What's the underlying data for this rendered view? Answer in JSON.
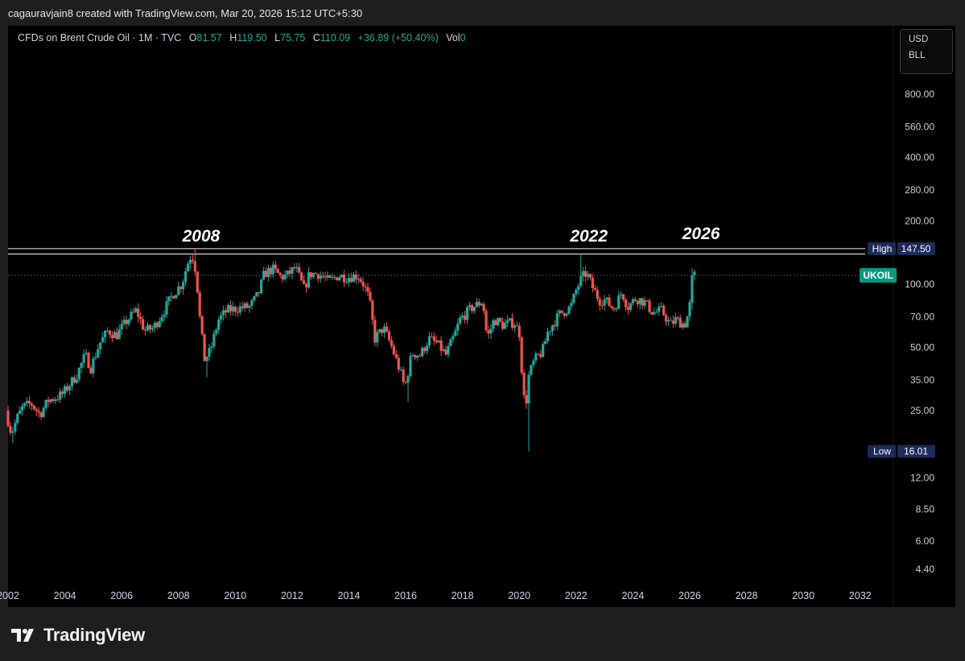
{
  "header": {
    "credit": "cagauravjain8 created with TradingView.com, Mar 20, 2026 15:12 UTC+5:30"
  },
  "legend": {
    "symbol": "CFDs on Brent Crude Oil · 1M · TVC",
    "open_label": "O",
    "open": "81.57",
    "high_label": "H",
    "high": "119.50",
    "low_label": "L",
    "low": "75.75",
    "close_label": "C",
    "close": "110.09",
    "change": "+36.89 (+50.40%)",
    "vol_label": "Vol",
    "vol": "0"
  },
  "unit_box": {
    "currency": "USD",
    "unit": "BLL"
  },
  "footer": {
    "brand": "TradingView"
  },
  "colors": {
    "up": "#26a69a",
    "down": "#ef5350",
    "background": "#000000",
    "high_marker": "#1c2b5a",
    "symbol_marker": "#089981"
  },
  "chart_data": {
    "type": "candlestick",
    "symbol": "UKOIL",
    "timeframe": "1M",
    "y_scale": "log",
    "ylim": [
      3.5,
      1100
    ],
    "xlim": [
      2002.0,
      2033.0
    ],
    "y_ticks": [
      "800.00",
      "560.00",
      "400.00",
      "280.00",
      "200.00",
      "100.00",
      "70.00",
      "50.00",
      "35.00",
      "25.00",
      "12.00",
      "8.50",
      "6.00",
      "4.40"
    ],
    "x_ticks": [
      "2002",
      "2004",
      "2006",
      "2008",
      "2010",
      "2012",
      "2014",
      "2016",
      "2018",
      "2020",
      "2022",
      "2024",
      "2026",
      "2028",
      "2030",
      "2032"
    ],
    "annotations": [
      "2008",
      "2022",
      "2026"
    ],
    "high_marker": {
      "label": "High",
      "value": "147.50"
    },
    "low_marker": {
      "label": "Low",
      "value": "16.01"
    },
    "last_price_label": "UKOIL",
    "resistance_lines": [
      147.5,
      139.1
    ],
    "current_price": 110.09,
    "price_path": [
      [
        2002.0,
        25
      ],
      [
        2002.2,
        19.5
      ],
      [
        2002.4,
        23
      ],
      [
        2002.6,
        26
      ],
      [
        2002.9,
        27
      ],
      [
        2003.2,
        24
      ],
      [
        2003.5,
        28
      ],
      [
        2003.8,
        29
      ],
      [
        2004.0,
        30
      ],
      [
        2004.5,
        37
      ],
      [
        2004.8,
        46
      ],
      [
        2005.0,
        40
      ],
      [
        2005.3,
        52
      ],
      [
        2005.6,
        60
      ],
      [
        2005.9,
        57
      ],
      [
        2006.3,
        68
      ],
      [
        2006.6,
        75
      ],
      [
        2006.9,
        60
      ],
      [
        2007.2,
        62
      ],
      [
        2007.5,
        72
      ],
      [
        2007.9,
        90
      ],
      [
        2008.2,
        100
      ],
      [
        2008.4,
        125
      ],
      [
        2008.55,
        140
      ],
      [
        2008.7,
        115
      ],
      [
        2008.85,
        65
      ],
      [
        2009.0,
        44
      ],
      [
        2009.2,
        48
      ],
      [
        2009.5,
        68
      ],
      [
        2009.8,
        75
      ],
      [
        2010.2,
        77
      ],
      [
        2010.6,
        78
      ],
      [
        2010.9,
        90
      ],
      [
        2011.1,
        112
      ],
      [
        2011.4,
        118
      ],
      [
        2011.7,
        108
      ],
      [
        2011.9,
        110
      ],
      [
        2012.2,
        120
      ],
      [
        2012.5,
        95
      ],
      [
        2012.7,
        112
      ],
      [
        2013.0,
        112
      ],
      [
        2013.4,
        103
      ],
      [
        2013.7,
        110
      ],
      [
        2014.0,
        108
      ],
      [
        2014.4,
        110
      ],
      [
        2014.6,
        100
      ],
      [
        2014.8,
        85
      ],
      [
        2015.0,
        55
      ],
      [
        2015.3,
        62
      ],
      [
        2015.6,
        50
      ],
      [
        2015.9,
        38
      ],
      [
        2016.05,
        32
      ],
      [
        2016.3,
        47
      ],
      [
        2016.6,
        46
      ],
      [
        2016.9,
        55
      ],
      [
        2017.2,
        52
      ],
      [
        2017.5,
        46
      ],
      [
        2017.8,
        57
      ],
      [
        2018.0,
        68
      ],
      [
        2018.4,
        77
      ],
      [
        2018.8,
        83
      ],
      [
        2018.95,
        55
      ],
      [
        2019.2,
        68
      ],
      [
        2019.5,
        64
      ],
      [
        2019.9,
        66
      ],
      [
        2020.1,
        58
      ],
      [
        2020.2,
        33
      ],
      [
        2020.3,
        25
      ],
      [
        2020.4,
        36
      ],
      [
        2020.6,
        43
      ],
      [
        2020.9,
        48
      ],
      [
        2021.1,
        60
      ],
      [
        2021.5,
        72
      ],
      [
        2021.9,
        78
      ],
      [
        2022.1,
        95
      ],
      [
        2022.3,
        108
      ],
      [
        2022.45,
        113
      ],
      [
        2022.7,
        94
      ],
      [
        2022.9,
        84
      ],
      [
        2023.1,
        84
      ],
      [
        2023.4,
        76
      ],
      [
        2023.7,
        92
      ],
      [
        2023.9,
        78
      ],
      [
        2024.2,
        86
      ],
      [
        2024.5,
        82
      ],
      [
        2024.8,
        73
      ],
      [
        2025.1,
        75
      ],
      [
        2025.4,
        64
      ],
      [
        2025.6,
        68
      ],
      [
        2025.9,
        64
      ],
      [
        2026.0,
        70
      ],
      [
        2026.1,
        81.57
      ],
      [
        2026.2,
        110.09
      ]
    ],
    "wick_extremes": [
      [
        2002.2,
        17.5
      ],
      [
        2008.55,
        147.5
      ],
      [
        2009.0,
        36
      ],
      [
        2016.05,
        27.5
      ],
      [
        2020.3,
        16.01
      ],
      [
        2022.2,
        139.1
      ]
    ]
  }
}
